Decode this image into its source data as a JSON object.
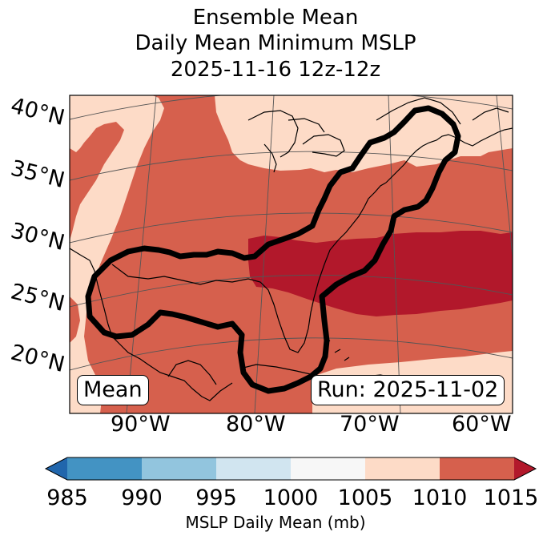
{
  "title": {
    "line1": "Ensemble Mean",
    "line2": "Daily Mean Minimum MSLP",
    "line3": "2025-11-16 12z-12z"
  },
  "map": {
    "latitude_labels": [
      "40°N",
      "35°N",
      "30°N",
      "25°N",
      "20°N"
    ],
    "longitude_labels": [
      "90°W",
      "80°W",
      "70°W",
      "60°W"
    ],
    "mean_badge": "Mean",
    "run_badge": "Run: 2025-11-02",
    "colors": {
      "field_1005_1010": "#fddbc7",
      "field_1010_1015": "#d6604d",
      "field_above_1015": "#b2182b",
      "contour": "#000000",
      "coastline": "#000000",
      "gridline": "#555555"
    }
  },
  "colorbar": {
    "ticks": [
      "985",
      "990",
      "995",
      "1000",
      "1005",
      "1010",
      "1015"
    ],
    "label": "MSLP Daily Mean (mb)",
    "bins": [
      {
        "range": "<985",
        "color": "#2166ac"
      },
      {
        "range": "985-990",
        "color": "#4393c3"
      },
      {
        "range": "990-995",
        "color": "#92c5de"
      },
      {
        "range": "995-1000",
        "color": "#d1e5f0"
      },
      {
        "range": "1000-1005",
        "color": "#f7f7f7"
      },
      {
        "range": "1005-1010",
        "color": "#fddbc7"
      },
      {
        "range": "1010-1015",
        "color": "#d6604d"
      },
      {
        "range": ">1015",
        "color": "#b2182b"
      }
    ]
  }
}
